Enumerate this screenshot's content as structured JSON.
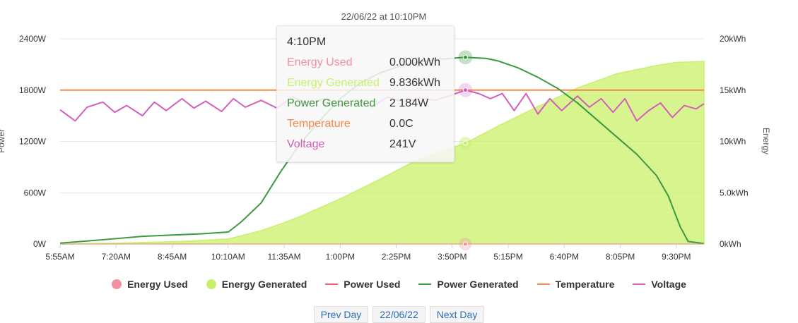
{
  "chart_data": {
    "type": "line",
    "subtitle": "22/06/22 at 10:10PM",
    "y_left": {
      "label": "Power",
      "range": [
        0,
        2400
      ],
      "ticks": [
        "0W",
        "600W",
        "1200W",
        "1800W",
        "2400W"
      ]
    },
    "y_right": {
      "label": "Energy",
      "range": [
        0,
        20
      ],
      "ticks": [
        "0kWh",
        "5.0kWh",
        "10kWh",
        "15kWh",
        "20kWh"
      ]
    },
    "x_ticks": [
      "5:55AM",
      "7:20AM",
      "8:45AM",
      "10:10AM",
      "11:35AM",
      "1:00PM",
      "2:25PM",
      "3:50PM",
      "5:15PM",
      "6:40PM",
      "8:05PM",
      "9:30PM"
    ],
    "x_range_hours": [
      5.9167,
      22.2
    ],
    "grid": true,
    "legend_position": "bottom",
    "series": [
      {
        "name": "Energy Used",
        "color": "#f28fa0",
        "unit": "kWh",
        "points": [
          [
            5.9167,
            0
          ],
          [
            22.2,
            0
          ]
        ]
      },
      {
        "name": "Energy Generated",
        "color": "#c9f06a",
        "unit": "kWh",
        "points": [
          [
            5.9167,
            0
          ],
          [
            7.5,
            0.1
          ],
          [
            9.0,
            0.25
          ],
          [
            10.17,
            0.5
          ],
          [
            10.5,
            0.8
          ],
          [
            11.0,
            1.3
          ],
          [
            11.6,
            2.1
          ],
          [
            12.0,
            2.7
          ],
          [
            13.0,
            4.4
          ],
          [
            14.0,
            6.3
          ],
          [
            15.0,
            8.3
          ],
          [
            16.17,
            9.836
          ],
          [
            17.0,
            11.5
          ],
          [
            18.0,
            13.4
          ],
          [
            19.0,
            15.2
          ],
          [
            20.0,
            16.6
          ],
          [
            21.0,
            17.4
          ],
          [
            21.5,
            17.7
          ],
          [
            22.2,
            17.8
          ]
        ]
      },
      {
        "name": "Power Used",
        "color": "#ef5b6f",
        "unit": "W",
        "points": []
      },
      {
        "name": "Power Generated",
        "color": "#3b9a3f",
        "unit": "W",
        "points": [
          [
            5.9167,
            10
          ],
          [
            7.0,
            50
          ],
          [
            8.0,
            90
          ],
          [
            9.5,
            120
          ],
          [
            10.17,
            140
          ],
          [
            10.5,
            260
          ],
          [
            11.0,
            480
          ],
          [
            11.5,
            850
          ],
          [
            12.0,
            1180
          ],
          [
            12.5,
            1450
          ],
          [
            13.0,
            1700
          ],
          [
            13.5,
            1880
          ],
          [
            14.0,
            2000
          ],
          [
            14.5,
            2080
          ],
          [
            15.0,
            2130
          ],
          [
            15.5,
            2160
          ],
          [
            16.17,
            2184
          ],
          [
            16.7,
            2170
          ],
          [
            17.0,
            2140
          ],
          [
            17.5,
            2060
          ],
          [
            18.0,
            1950
          ],
          [
            18.5,
            1820
          ],
          [
            19.0,
            1650
          ],
          [
            19.5,
            1450
          ],
          [
            20.0,
            1250
          ],
          [
            20.5,
            1050
          ],
          [
            21.0,
            800
          ],
          [
            21.3,
            560
          ],
          [
            21.6,
            200
          ],
          [
            21.8,
            30
          ],
          [
            22.2,
            5
          ]
        ]
      },
      {
        "name": "Temperature",
        "color": "#f5894a",
        "unit": "C",
        "points": [
          [
            5.9167,
            1800
          ],
          [
            22.2,
            1800
          ]
        ]
      },
      {
        "name": "Voltage",
        "color": "#d35fb8",
        "unit": "V",
        "points": [
          [
            5.9167,
            1570
          ],
          [
            6.3,
            1440
          ],
          [
            6.6,
            1600
          ],
          [
            7.0,
            1660
          ],
          [
            7.3,
            1540
          ],
          [
            7.6,
            1620
          ],
          [
            8.0,
            1500
          ],
          [
            8.3,
            1660
          ],
          [
            8.6,
            1560
          ],
          [
            9.0,
            1700
          ],
          [
            9.3,
            1590
          ],
          [
            9.6,
            1670
          ],
          [
            10.0,
            1550
          ],
          [
            10.3,
            1700
          ],
          [
            10.6,
            1600
          ],
          [
            11.0,
            1680
          ],
          [
            11.4,
            1590
          ],
          [
            11.8,
            1720
          ],
          [
            12.2,
            1640
          ],
          [
            12.6,
            1700
          ],
          [
            13.0,
            1620
          ],
          [
            13.4,
            1690
          ],
          [
            13.8,
            1600
          ],
          [
            14.2,
            1720
          ],
          [
            14.6,
            1660
          ],
          [
            15.0,
            1710
          ],
          [
            15.4,
            1680
          ],
          [
            15.8,
            1740
          ],
          [
            16.17,
            1800
          ],
          [
            16.5,
            1760
          ],
          [
            16.8,
            1700
          ],
          [
            17.1,
            1760
          ],
          [
            17.4,
            1560
          ],
          [
            17.7,
            1760
          ],
          [
            18.0,
            1520
          ],
          [
            18.3,
            1700
          ],
          [
            18.6,
            1560
          ],
          [
            19.0,
            1730
          ],
          [
            19.3,
            1600
          ],
          [
            19.6,
            1700
          ],
          [
            19.9,
            1540
          ],
          [
            20.2,
            1700
          ],
          [
            20.5,
            1440
          ],
          [
            20.8,
            1560
          ],
          [
            21.1,
            1650
          ],
          [
            21.4,
            1480
          ],
          [
            21.7,
            1620
          ],
          [
            22.0,
            1580
          ],
          [
            22.2,
            1640
          ]
        ]
      }
    ]
  },
  "tooltip": {
    "time": "4:10PM",
    "rows": [
      {
        "label": "Energy Used",
        "value": "0.000kWh",
        "color": "#f28fa0"
      },
      {
        "label": "Energy Generated",
        "value": "9.836kWh",
        "color": "#c9f06a"
      },
      {
        "label": "Power Generated",
        "value": "2 184W",
        "color": "#3b9a3f"
      },
      {
        "label": "Temperature",
        "value": "0.0C",
        "color": "#f5894a"
      },
      {
        "label": "Voltage",
        "value": "241V",
        "color": "#d35fb8"
      }
    ]
  },
  "legend": [
    {
      "label": "Energy Used",
      "color": "#f28fa0",
      "symbol": "circle"
    },
    {
      "label": "Energy Generated",
      "color": "#c9f06a",
      "symbol": "circle"
    },
    {
      "label": "Power Used",
      "color": "#ef5b6f",
      "symbol": "line"
    },
    {
      "label": "Power Generated",
      "color": "#3b9a3f",
      "symbol": "line"
    },
    {
      "label": "Temperature",
      "color": "#f5894a",
      "symbol": "line"
    },
    {
      "label": "Voltage",
      "color": "#d35fb8",
      "symbol": "line"
    }
  ],
  "nav": {
    "prev": "Prev Day",
    "date": "22/06/22",
    "next": "Next Day"
  }
}
